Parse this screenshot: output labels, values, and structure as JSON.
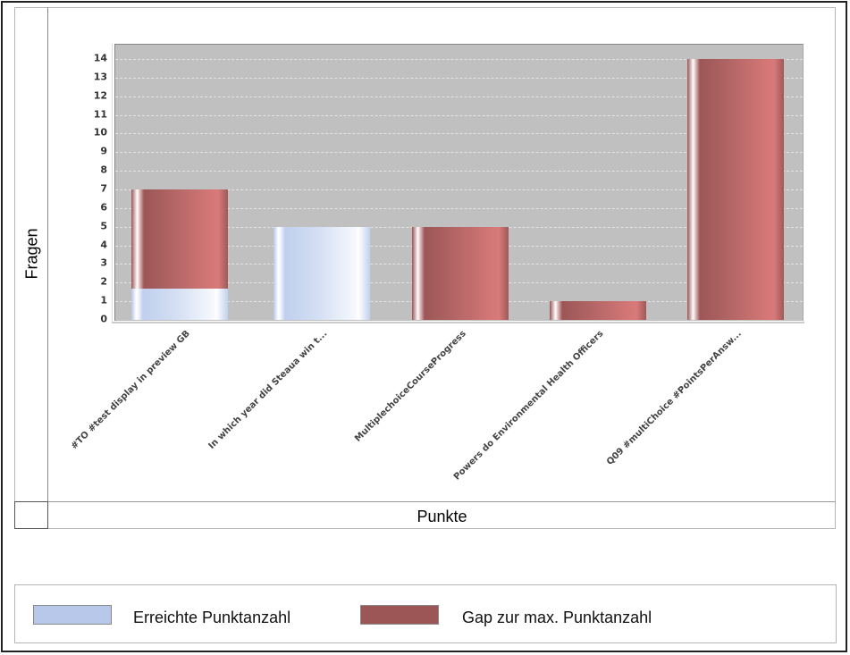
{
  "chart_data": {
    "type": "bar",
    "stacked": true,
    "title": "",
    "xlabel": "Punkte",
    "ylabel": "Fragen",
    "ylim": [
      0,
      14.5
    ],
    "yticks": [
      0,
      1,
      2,
      3,
      4,
      5,
      6,
      7,
      8,
      9,
      10,
      11,
      12,
      13,
      14
    ],
    "grid": true,
    "legend_position": "bottom",
    "categories": [
      "#TO #test display in preview GB",
      "In which year did Steaua win t...",
      "MultiplechoiceCourseProgress",
      "Powers do Environmental Health Officers",
      "Q09 #multiChoice #PointsPerAnsw..."
    ],
    "series": [
      {
        "name": "Erreichte Punktanzahl",
        "color": "#b8c8ea",
        "values": [
          1.67,
          5,
          0,
          0,
          0
        ]
      },
      {
        "name": "Gap zur max. Punktanzahl",
        "color": "#9c5656",
        "values": [
          5.33,
          0,
          5,
          1,
          14
        ]
      }
    ]
  },
  "axes": {
    "ylabel": "Fragen",
    "xlabel": "Punkte",
    "yticks": [
      "0",
      "1",
      "2",
      "3",
      "4",
      "5",
      "6",
      "7",
      "8",
      "9",
      "10",
      "11",
      "12",
      "13",
      "14"
    ],
    "categories": [
      "#TO #test display in preview GB",
      "In which year did Steaua win t...",
      "MultiplechoiceCourseProgress",
      "Powers do Environmental Health Officers",
      "Q09 #multiChoice #PointsPerAnsw..."
    ]
  },
  "legend": {
    "items": [
      {
        "label": "Erreichte Punktanzahl",
        "color": "#b8c8ea"
      },
      {
        "label": "Gap zur max. Punktanzahl",
        "color": "#9c5656"
      }
    ]
  }
}
